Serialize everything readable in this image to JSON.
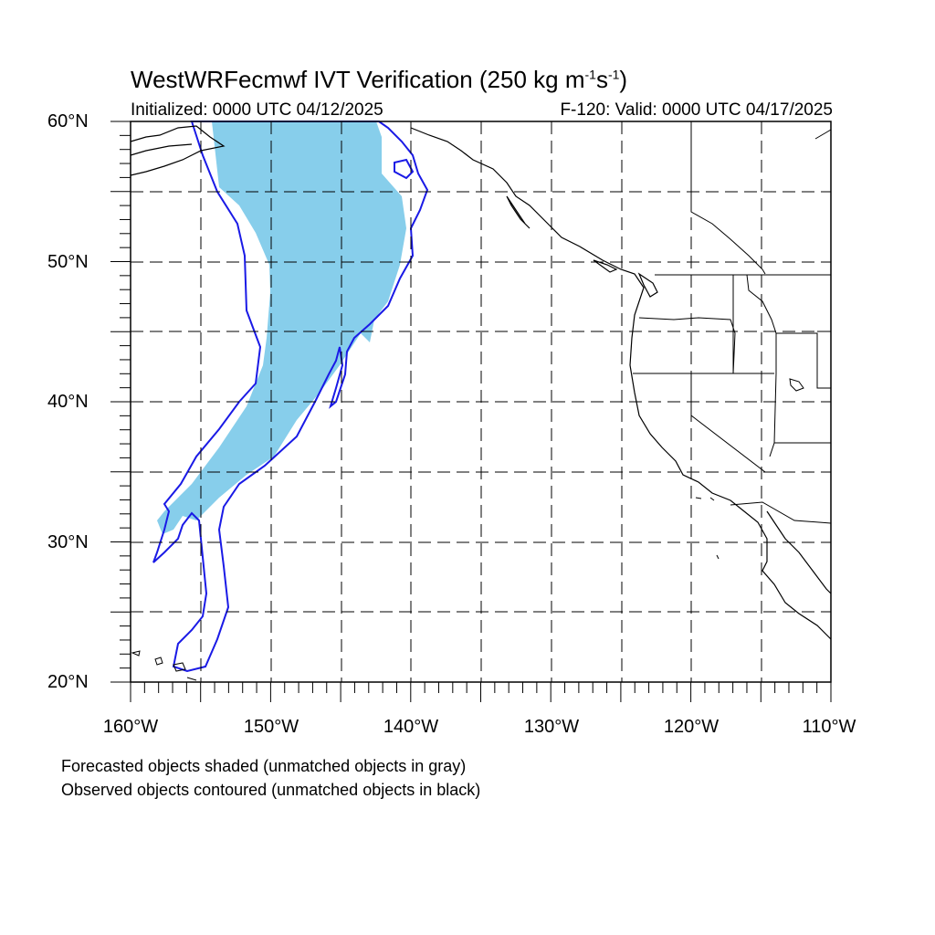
{
  "title": {
    "prefix": "WestWRFecmwf IVT Verification (250 kg m",
    "sup1": "-1",
    "mid": "s",
    "sup2": "-1",
    "suffix": ")"
  },
  "initialized": "Initialized: 0000 UTC 04/12/2025",
  "valid": "F-120: Valid: 0000 UTC 04/17/2025",
  "lat_labels": [
    "60°N",
    "50°N",
    "40°N",
    "30°N",
    "20°N"
  ],
  "lon_labels": [
    "160°W",
    "150°W",
    "140°W",
    "130°W",
    "120°W",
    "110°W"
  ],
  "notes": [
    "Forecasted objects shaded (unmatched objects in gray)",
    "Observed objects contoured (unmatched objects in black)"
  ],
  "colors": {
    "forecast_fill": "#87ceeb",
    "observed_contour": "#1a1ae6",
    "coastline": "#000000",
    "grid": "#000000"
  },
  "map": {
    "projection": "cylindrical-equidistant",
    "lon_range": [
      -160,
      -110
    ],
    "lat_range": [
      20,
      60
    ],
    "grid": "dashed every 5 degrees"
  }
}
